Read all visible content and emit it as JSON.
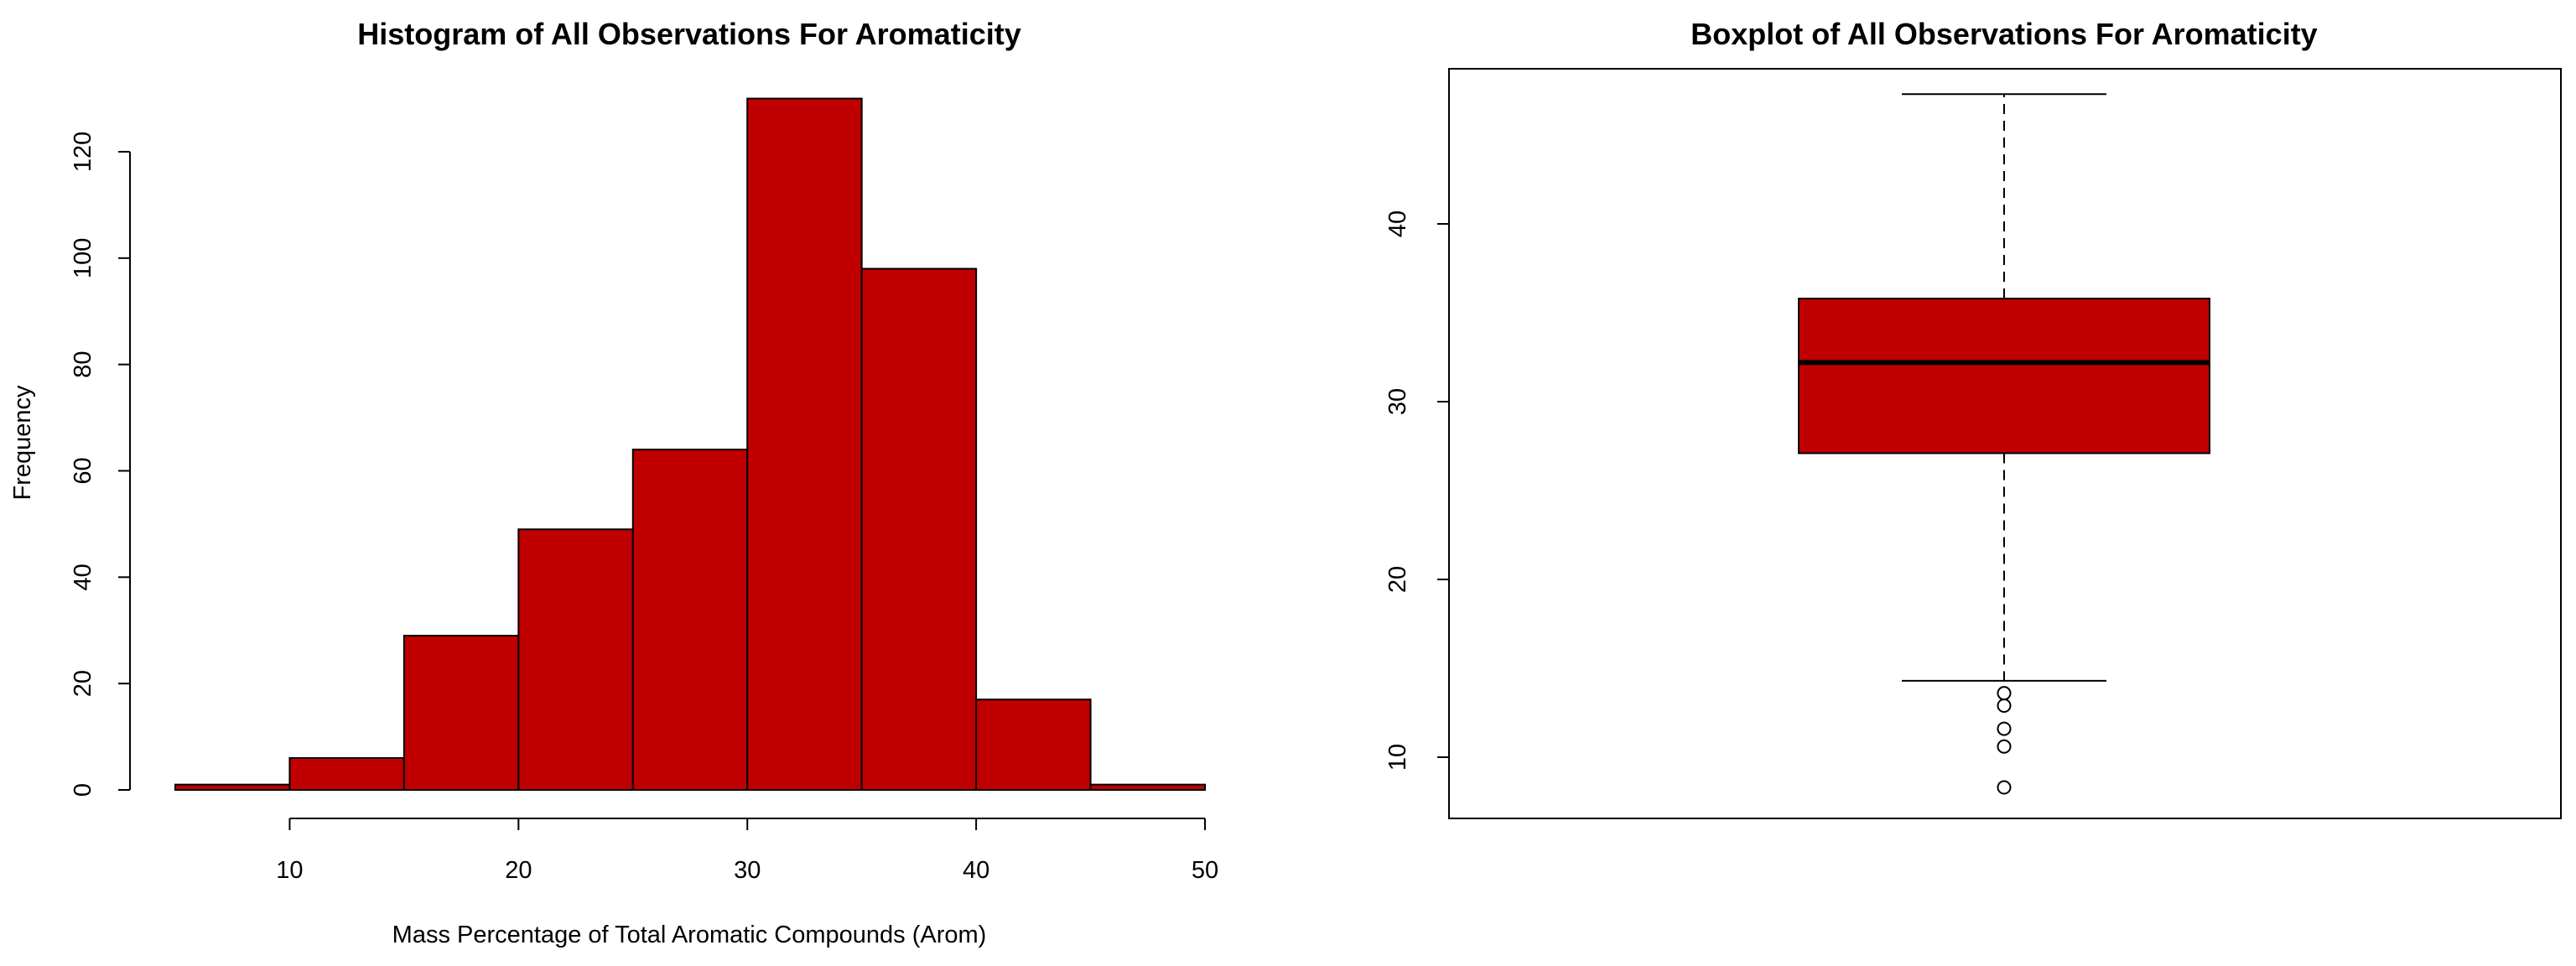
{
  "accent_color": "#C00000",
  "chart_data": [
    {
      "type": "bar",
      "subtype": "histogram",
      "title": "Histogram of All Observations For Aromaticity",
      "xlabel": "Mass Percentage of Total Aromatic Compounds (Arom)",
      "ylabel": "Frequency",
      "bin_edges": [
        5,
        10,
        15,
        20,
        25,
        30,
        35,
        40,
        45,
        50
      ],
      "values": [
        1,
        6,
        29,
        49,
        64,
        130,
        98,
        17,
        1
      ],
      "xlim": [
        5,
        50
      ],
      "ylim": [
        0,
        130
      ],
      "x_ticks": [
        10,
        20,
        30,
        40,
        50
      ],
      "y_ticks": [
        0,
        20,
        40,
        60,
        80,
        100,
        120
      ],
      "fill_color": "#C00000",
      "grid": false
    },
    {
      "type": "boxplot",
      "title": "Boxplot of All Observations For Aromaticity",
      "xlabel": "",
      "ylabel": "",
      "stats": {
        "whisker_low": 14.3,
        "q1": 27.1,
        "median": 32.2,
        "q3": 35.8,
        "whisker_high": 47.3
      },
      "outliers": [
        13.6,
        12.9,
        11.6,
        10.6,
        8.3
      ],
      "ylim": [
        7.5,
        49.5
      ],
      "y_ticks": [
        10,
        20,
        30,
        40
      ],
      "fill_color": "#C00000",
      "grid": false
    }
  ]
}
